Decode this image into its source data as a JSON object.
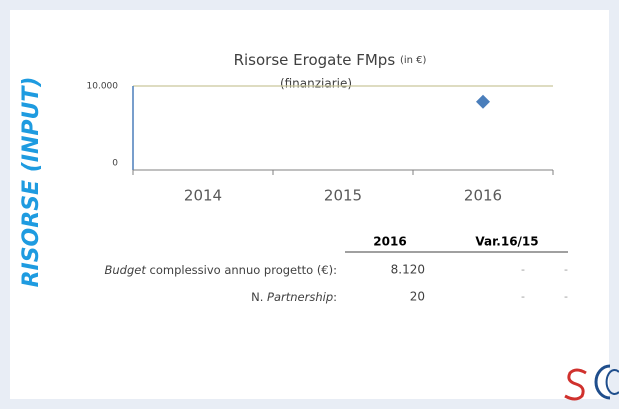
{
  "side_label": "RISORSE (INPUT)",
  "chart_data": {
    "type": "line",
    "title": "Risorse Erogate FMps",
    "title_unit": "(in €)",
    "subtitle": "(finanziarie)",
    "categories": [
      "2014",
      "2015",
      "2016"
    ],
    "values": [
      null,
      null,
      8120
    ],
    "color": "#4a7ebb",
    "marker": "diamond",
    "ylim": [
      0,
      10000
    ],
    "yticks": [
      0,
      {
        "value": 10000,
        "label": "10.000"
      }
    ],
    "grid": true,
    "grid_color": "#c9c79c",
    "axis_color": "#4a7ebb"
  },
  "table": {
    "header": [
      "2016",
      "Var.16/15"
    ],
    "rows": [
      {
        "label": [
          {
            "text": "Budget",
            "italic": true
          },
          {
            "text": " complessivo annuo progetto (€):"
          }
        ],
        "cells": [
          "8.120",
          "-",
          "-"
        ]
      },
      {
        "label": [
          {
            "text": "N. "
          },
          {
            "text": "Partnership",
            "italic": true
          },
          {
            "text": ":"
          }
        ],
        "cells": [
          "20",
          "-",
          "-"
        ]
      }
    ]
  }
}
